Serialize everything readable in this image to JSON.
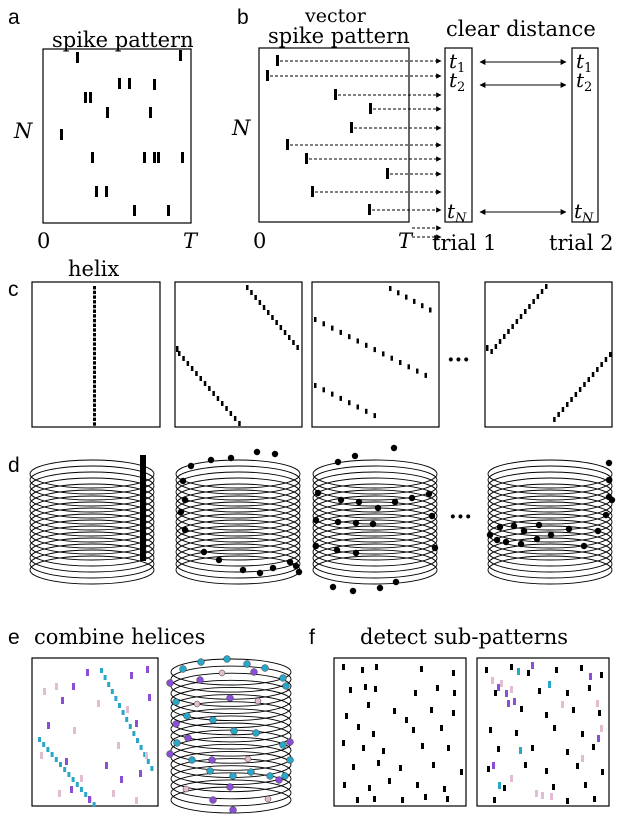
{
  "figure": {
    "panel_labels": [
      "a",
      "b",
      "c",
      "d",
      "e",
      "f"
    ],
    "a": {
      "title": "spike pattern",
      "y_label": "N",
      "x_start": "0",
      "x_end": "T"
    },
    "b": {
      "title_line1": "vector",
      "title_line2": "spike pattern",
      "y_label": "N",
      "x_start": "0",
      "x_end": "T",
      "clear_distance": "clear distance",
      "trial1": "trial 1",
      "trial2": "trial 2",
      "t1_base": "t",
      "t1_sub": "1",
      "t2_base": "t",
      "t2_sub": "2",
      "tN_base": "t",
      "tN_sub": "N"
    },
    "c": {
      "helix_label": "helix",
      "ellipsis": "···"
    },
    "d": {
      "ellipsis": "···"
    },
    "e": {
      "title": "combine helices"
    },
    "f": {
      "title": "detect sub-patterns"
    },
    "colors": {
      "black": "#000000",
      "cyan": "#2aa6c9",
      "purple": "#8b4fd6",
      "pink": "#e2bcd0"
    }
  }
}
